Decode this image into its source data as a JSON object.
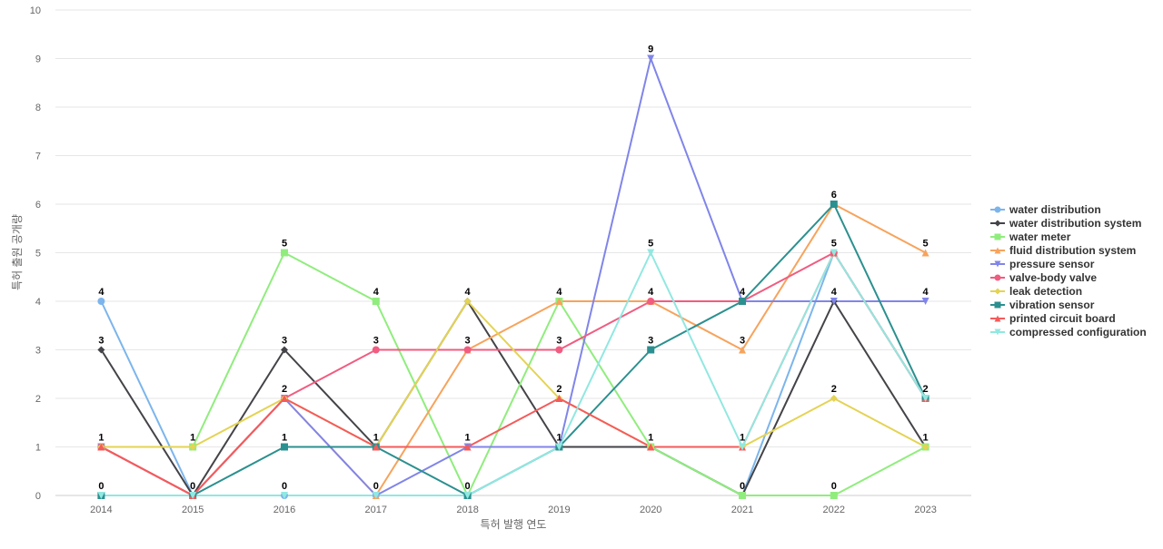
{
  "chart_data": {
    "type": "line",
    "title": "",
    "xlabel": "특허 발행 연도",
    "ylabel": "특허 출원 공개량",
    "ylim": [
      0,
      10
    ],
    "yticks": [
      0,
      1,
      2,
      3,
      4,
      5,
      6,
      7,
      8,
      9,
      10
    ],
    "grid": true,
    "legend_position": "right",
    "x": [
      "2014",
      "2015",
      "2016",
      "2017",
      "2018",
      "2019",
      "2020",
      "2021",
      "2022",
      "2023"
    ],
    "series": [
      {
        "name": "water distribution",
        "color": "#7cb5ec",
        "marker": "circle",
        "values": [
          4,
          0,
          0,
          0,
          0,
          1,
          1,
          0,
          5,
          2
        ]
      },
      {
        "name": "water distribution system",
        "color": "#434348",
        "marker": "diamond",
        "values": [
          3,
          0,
          3,
          1,
          4,
          1,
          1,
          0,
          4,
          1
        ]
      },
      {
        "name": "water meter",
        "color": "#90ed7d",
        "marker": "square",
        "values": [
          1,
          1,
          5,
          4,
          0,
          4,
          1,
          0,
          0,
          1
        ]
      },
      {
        "name": "fluid distribution system",
        "color": "#f7a35c",
        "marker": "triangle",
        "values": [
          1,
          0,
          2,
          0,
          3,
          4,
          4,
          3,
          6,
          5
        ]
      },
      {
        "name": "pressure sensor",
        "color": "#8085e9",
        "marker": "triangle-down",
        "values": [
          1,
          0,
          2,
          0,
          1,
          1,
          9,
          4,
          4,
          4
        ]
      },
      {
        "name": "valve-body valve",
        "color": "#f15c80",
        "marker": "circle",
        "values": [
          1,
          0,
          2,
          3,
          3,
          3,
          4,
          4,
          5,
          2
        ]
      },
      {
        "name": "leak detection",
        "color": "#e4d354",
        "marker": "diamond",
        "values": [
          1,
          1,
          2,
          1,
          4,
          2,
          1,
          1,
          2,
          1
        ]
      },
      {
        "name": "vibration sensor",
        "color": "#2b908f",
        "marker": "square",
        "values": [
          0,
          0,
          1,
          1,
          0,
          1,
          3,
          4,
          6,
          2
        ]
      },
      {
        "name": "printed circuit board",
        "color": "#f45b5b",
        "marker": "triangle",
        "values": [
          1,
          0,
          2,
          1,
          1,
          2,
          1,
          1,
          5,
          2
        ]
      },
      {
        "name": "compressed configuration",
        "color": "#91e8e1",
        "marker": "triangle-down",
        "values": [
          0,
          0,
          0,
          0,
          0,
          1,
          5,
          1,
          5,
          2
        ]
      }
    ],
    "data_labels": [
      {
        "x": "2014",
        "text": "4",
        "value": 4
      },
      {
        "x": "2014",
        "text": "3",
        "value": 3
      },
      {
        "x": "2014",
        "text": "1",
        "value": 1
      },
      {
        "x": "2014",
        "text": "0",
        "value": 0
      },
      {
        "x": "2015",
        "text": "1",
        "value": 1
      },
      {
        "x": "2015",
        "text": "0",
        "value": 0
      },
      {
        "x": "2016",
        "text": "5",
        "value": 5
      },
      {
        "x": "2016",
        "text": "3",
        "value": 3
      },
      {
        "x": "2016",
        "text": "2",
        "value": 2
      },
      {
        "x": "2016",
        "text": "1",
        "value": 1
      },
      {
        "x": "2016",
        "text": "0",
        "value": 0
      },
      {
        "x": "2017",
        "text": "4",
        "value": 4
      },
      {
        "x": "2017",
        "text": "3",
        "value": 3
      },
      {
        "x": "2017",
        "text": "1",
        "value": 1
      },
      {
        "x": "2017",
        "text": "0",
        "value": 0
      },
      {
        "x": "2018",
        "text": "4",
        "value": 4
      },
      {
        "x": "2018",
        "text": "3",
        "value": 3
      },
      {
        "x": "2018",
        "text": "1",
        "value": 1
      },
      {
        "x": "2018",
        "text": "0",
        "value": 0
      },
      {
        "x": "2019",
        "text": "4",
        "value": 4
      },
      {
        "x": "2019",
        "text": "3",
        "value": 3
      },
      {
        "x": "2019",
        "text": "2",
        "value": 2
      },
      {
        "x": "2019",
        "text": "1",
        "value": 1
      },
      {
        "x": "2020",
        "text": "9",
        "value": 9
      },
      {
        "x": "2020",
        "text": "5",
        "value": 5
      },
      {
        "x": "2020",
        "text": "4",
        "value": 4
      },
      {
        "x": "2020",
        "text": "3",
        "value": 3
      },
      {
        "x": "2020",
        "text": "1",
        "value": 1
      },
      {
        "x": "2021",
        "text": "4",
        "value": 4
      },
      {
        "x": "2021",
        "text": "3",
        "value": 3
      },
      {
        "x": "2021",
        "text": "1",
        "value": 1
      },
      {
        "x": "2021",
        "text": "0",
        "value": 0
      },
      {
        "x": "2022",
        "text": "6",
        "value": 6
      },
      {
        "x": "2022",
        "text": "5",
        "value": 5
      },
      {
        "x": "2022",
        "text": "4",
        "value": 4
      },
      {
        "x": "2022",
        "text": "2",
        "value": 2
      },
      {
        "x": "2022",
        "text": "0",
        "value": 0
      },
      {
        "x": "2023",
        "text": "5",
        "value": 5
      },
      {
        "x": "2023",
        "text": "4",
        "value": 4
      },
      {
        "x": "2023",
        "text": "2",
        "value": 2
      },
      {
        "x": "2023",
        "text": "1",
        "value": 1
      }
    ]
  }
}
